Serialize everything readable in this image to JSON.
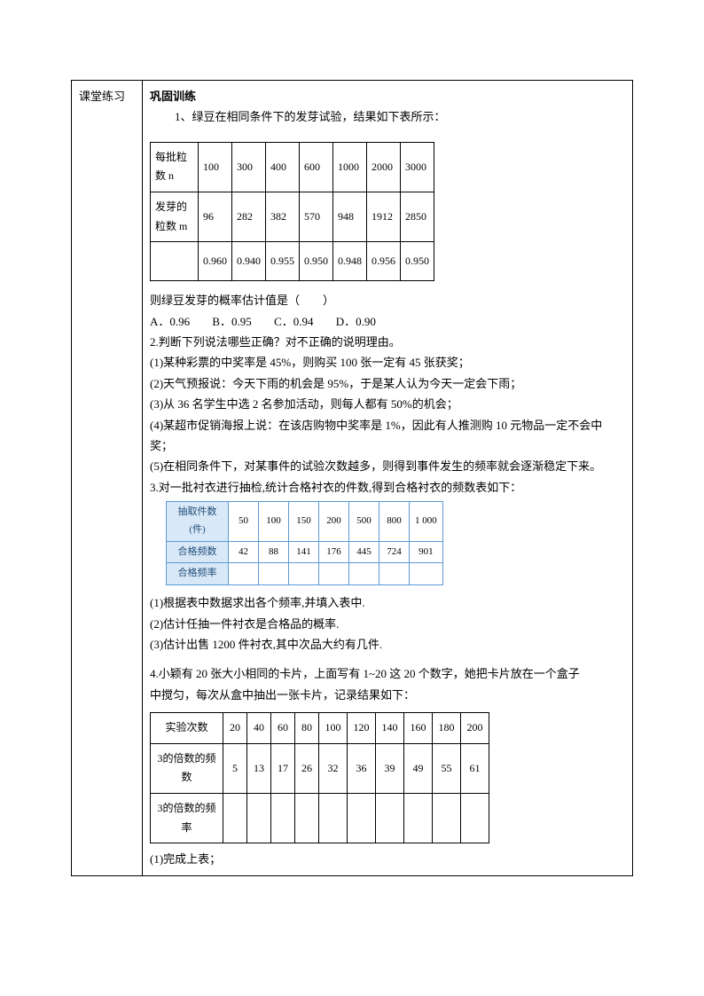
{
  "left_label": "课堂练习",
  "section_title": "巩固训练",
  "q1_intro": "1、绿豆在相同条件下的发芽试验，结果如下表所示：",
  "table1": {
    "row1_label": "每批粒数 n",
    "row1": [
      "100",
      "300",
      "400",
      "600",
      "1000",
      "2000",
      "3000"
    ],
    "row2_label": "发芽的粒数 m",
    "row2": [
      "96",
      "282",
      "382",
      "570",
      "948",
      "1912",
      "2850"
    ],
    "row3_label": "",
    "row3": [
      "0.960",
      "0.940",
      "0.955",
      "0.950",
      "0.948",
      "0.956",
      "0.950"
    ]
  },
  "q1_stem": "则绿豆发芽的概率估计值是（　　）",
  "q1_options": {
    "A": "A．0.96",
    "B": "B．0.95",
    "C": "C．0.94",
    "D": "D．0.90"
  },
  "q2_stem": "2.判断下列说法哪些正确？对不正确的说明理由。",
  "q2_1": "(1)某种彩票的中奖率是 45%，则购买 100 张一定有 45 张获奖；",
  "q2_2": "(2)天气预报说：今天下雨的机会是 95%，于是某人认为今天一定会下雨；",
  "q2_3": "(3)从 36 名学生中选 2 名参加活动，则每人都有 50%的机会；",
  "q2_4": "(4)某超市促销海报上说：在该店购物中奖率是 1%，因此有人推测购 10 元物品一定不会中奖；",
  "q2_5": "(5)在相同条件下，对某事件的试验次数越多，则得到事件发生的频率就会逐渐稳定下来。",
  "q3_stem": "3.对一批衬衣进行抽检,统计合格衬衣的件数,得到合格衬衣的频数表如下：",
  "table2": {
    "h1": "抽取件数(件)",
    "h2": "合格频数",
    "h3": "合格频率",
    "cols": [
      "50",
      "100",
      "150",
      "200",
      "500",
      "800",
      "1 000"
    ],
    "vals": [
      "42",
      "88",
      "141",
      "176",
      "445",
      "724",
      "901"
    ]
  },
  "q3_1": "(1)根据表中数据求出各个频率,并填入表中.",
  "q3_2": "(2)估计任抽一件衬衣是合格品的概率.",
  "q3_3": "(3)估计出售 1200 件衬衣,其中次品大约有几件.",
  "q4_stem1": "4.小颖有 20 张大小相同的卡片，上面写有 1~20 这 20 个数字，她把卡片放在一个盒子",
  "q4_stem2": "中搅匀，每次从盒中抽出一张卡片，记录结果如下：",
  "table3": {
    "r1_label": "实验次数",
    "r1": [
      "20",
      "40",
      "60",
      "80",
      "100",
      "120",
      "140",
      "160",
      "180",
      "200"
    ],
    "r2_label": "3的倍数的频数",
    "r2": [
      "5",
      "13",
      "17",
      "26",
      "32",
      "36",
      "39",
      "49",
      "55",
      "61"
    ],
    "r3_label": "3的倍数的频率"
  },
  "q4_1": "(1)完成上表；"
}
